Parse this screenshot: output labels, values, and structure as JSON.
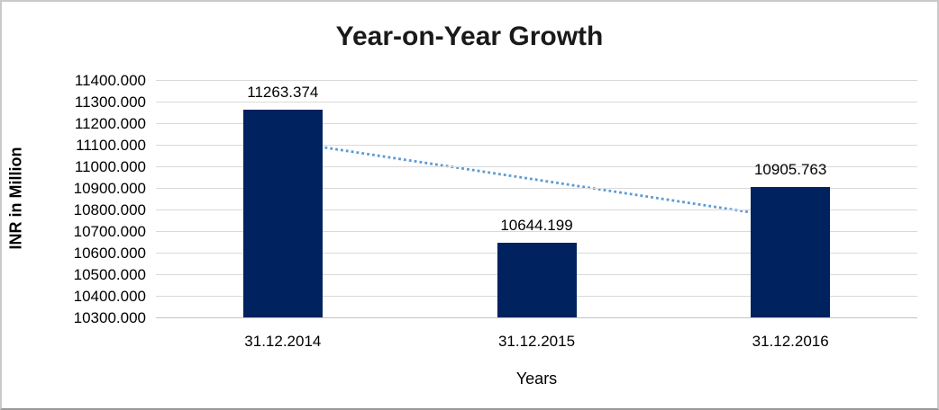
{
  "window": {
    "background_color": "#ffffff",
    "border_color": "#c9c9c9"
  },
  "chart_data": {
    "type": "bar",
    "title": "Year-on-Year Growth",
    "xlabel": "Years",
    "ylabel": "INR in Million",
    "categories": [
      "31.12.2014",
      "31.12.2015",
      "31.12.2016"
    ],
    "values": [
      11263.374,
      10644.199,
      10905.763
    ],
    "value_labels": [
      "11263.374",
      "10644.199",
      "10905.763"
    ],
    "ylim": [
      10300,
      11400
    ],
    "ytick_step": 100,
    "ytick_labels": [
      "11400.000",
      "11300.000",
      "11200.000",
      "11100.000",
      "11000.000",
      "10900.000",
      "10800.000",
      "10700.000",
      "10600.000",
      "10500.000",
      "10400.000",
      "10300.000"
    ],
    "grid": true,
    "legend_position": "none",
    "bar_color": "#00225f",
    "gridline_color": "#d9d9d9",
    "label_color": "#000000",
    "trendline": {
      "type": "linear",
      "style": "dotted",
      "color": "#5b9bd5",
      "start_value": 11116.6,
      "end_value": 10759.0
    }
  }
}
